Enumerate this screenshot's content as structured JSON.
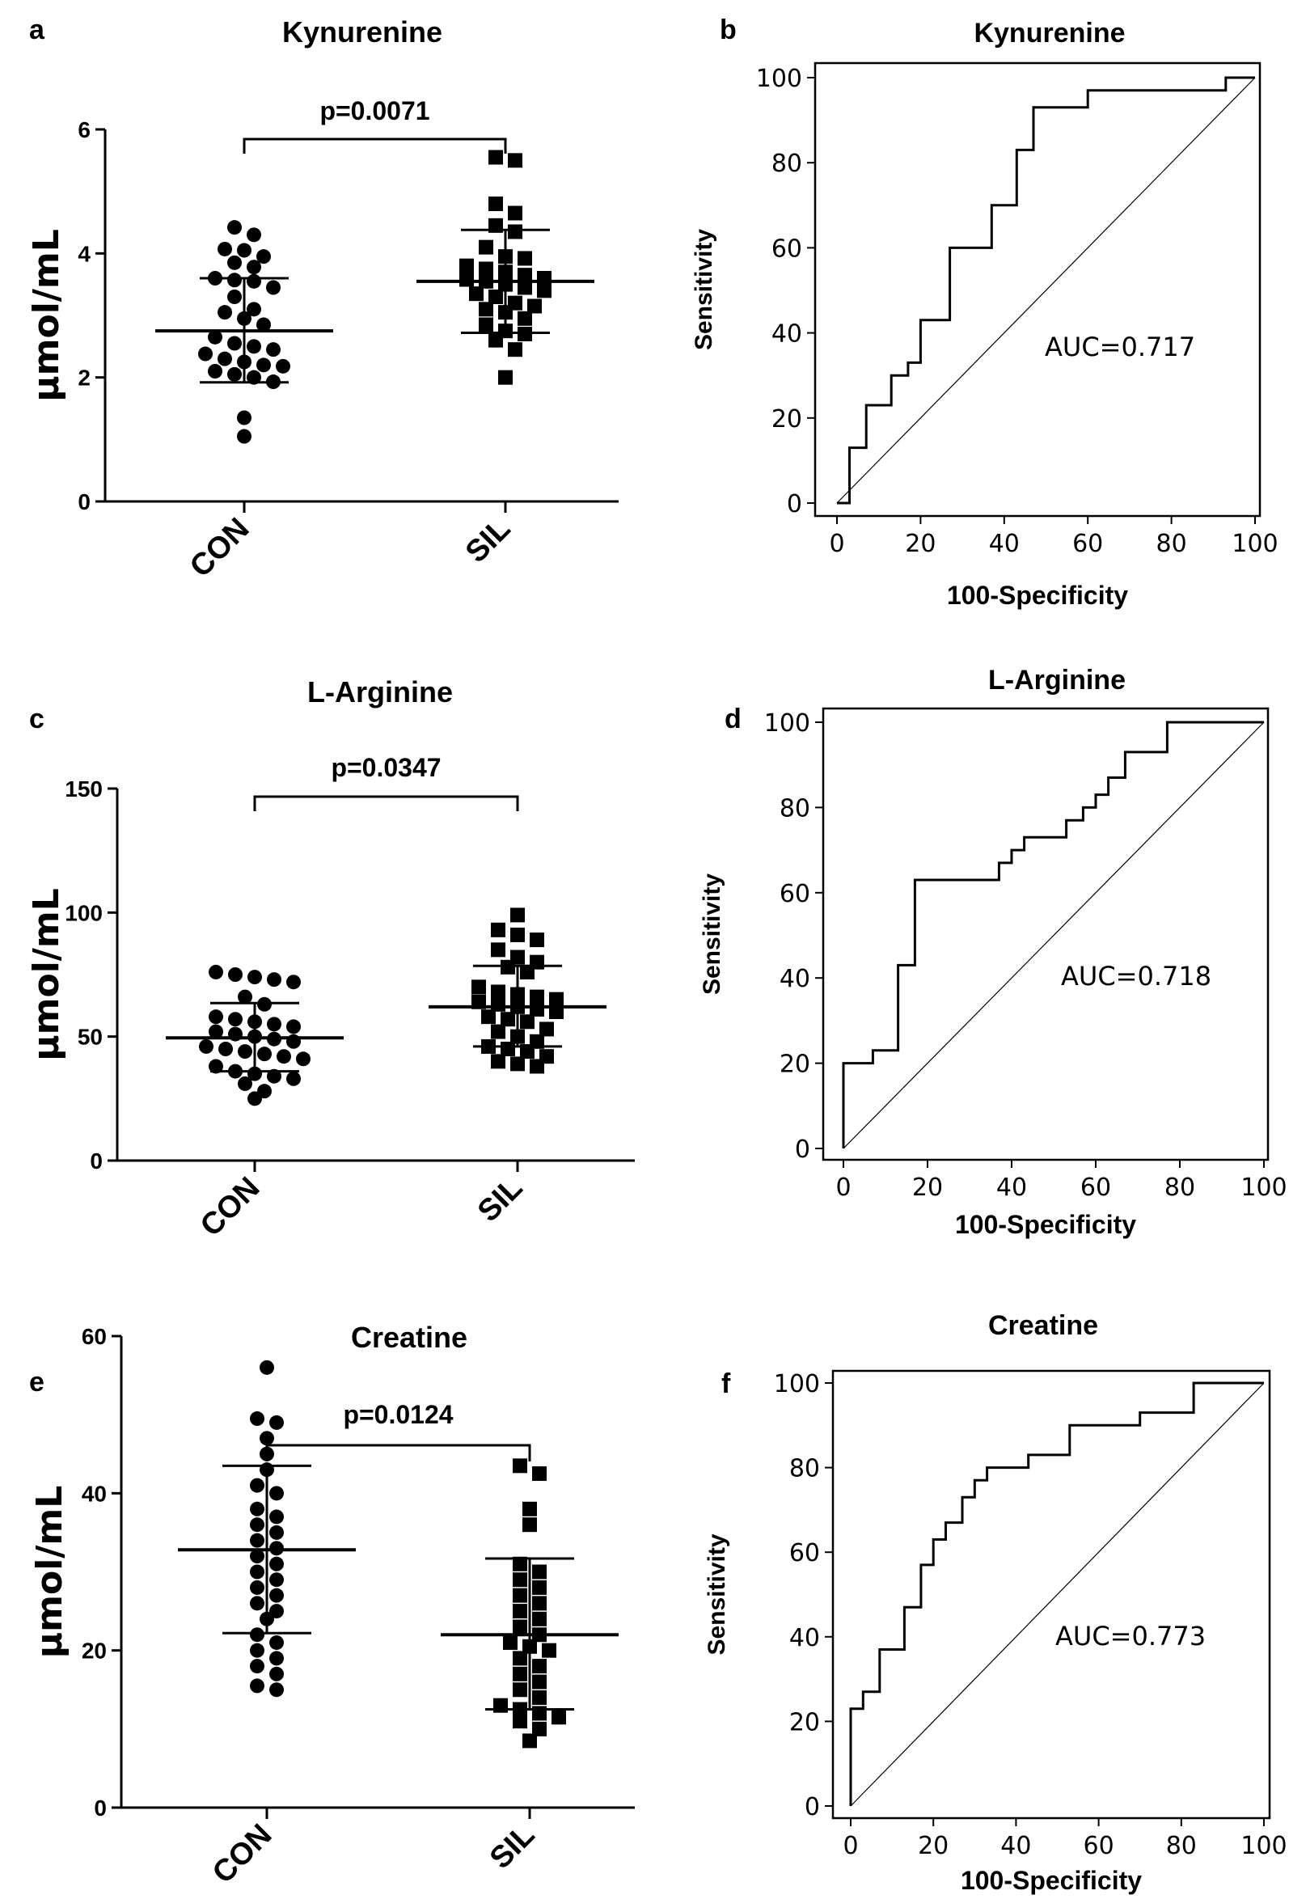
{
  "chart_data": [
    {
      "panel": "a",
      "type": "scatter",
      "title": "Kynurenine",
      "ylabel": "μmol/mL",
      "categories": [
        "CON",
        "SIL"
      ],
      "ylim": [
        0,
        6
      ],
      "yticks": [
        0,
        2,
        4,
        6
      ],
      "pvalue": "p=0.0071",
      "groups": [
        {
          "name": "CON",
          "marker": "circle",
          "mean": 2.75,
          "sd_low": 1.92,
          "sd_high": 3.6,
          "values": [
            4.42,
            4.3,
            4.07,
            4.05,
            3.95,
            3.85,
            3.78,
            3.6,
            3.57,
            3.55,
            3.45,
            3.3,
            3.1,
            3.05,
            2.95,
            2.85,
            2.65,
            2.55,
            2.5,
            2.45,
            2.38,
            2.3,
            2.25,
            2.2,
            2.18,
            2.1,
            2.05,
            2.0,
            1.93,
            1.35,
            1.05
          ]
        },
        {
          "name": "SIL",
          "marker": "square",
          "mean": 3.55,
          "sd_low": 2.72,
          "sd_high": 4.38,
          "values": [
            5.55,
            5.5,
            4.8,
            4.65,
            4.45,
            4.35,
            4.1,
            3.95,
            3.92,
            3.8,
            3.75,
            3.7,
            3.65,
            3.6,
            3.58,
            3.55,
            3.5,
            3.45,
            3.4,
            3.35,
            3.3,
            3.2,
            3.15,
            3.1,
            3.05,
            2.95,
            2.85,
            2.75,
            2.7,
            2.6,
            2.45,
            2.0
          ]
        }
      ]
    },
    {
      "panel": "b",
      "type": "line",
      "title": "Kynurenine",
      "xlabel": "100-Specificity",
      "ylabel": "Sensitivity",
      "xlim": [
        0,
        100
      ],
      "ylim": [
        0,
        100
      ],
      "ticks": [
        0,
        20,
        40,
        60,
        80,
        100
      ],
      "annotation": "AUC=0.717",
      "x": [
        0,
        3,
        3,
        7,
        7,
        13,
        13,
        17,
        17,
        20,
        20,
        27,
        27,
        37,
        37,
        43,
        43,
        47,
        47,
        60,
        60,
        93,
        93,
        100
      ],
      "y": [
        0,
        0,
        13,
        13,
        23,
        23,
        30,
        30,
        33,
        33,
        43,
        43,
        60,
        60,
        70,
        70,
        83,
        83,
        93,
        93,
        97,
        97,
        100,
        100
      ]
    },
    {
      "panel": "c",
      "type": "scatter",
      "title": "L-Arginine",
      "ylabel": "μmol/mL",
      "categories": [
        "CON",
        "SIL"
      ],
      "ylim": [
        0,
        150
      ],
      "yticks": [
        0,
        50,
        100,
        150
      ],
      "pvalue": "p=0.0347",
      "groups": [
        {
          "name": "CON",
          "marker": "circle",
          "mean": 49.5,
          "sd_low": 36,
          "sd_high": 63.5,
          "values": [
            76,
            75,
            74,
            73,
            72,
            66,
            63,
            58,
            57,
            56,
            55,
            54,
            52,
            51,
            50,
            49,
            48,
            46,
            45,
            44,
            43,
            42,
            41,
            38,
            36,
            35,
            34,
            33,
            31,
            28,
            25
          ]
        },
        {
          "name": "SIL",
          "marker": "square",
          "mean": 62,
          "sd_low": 46,
          "sd_high": 78.5,
          "values": [
            99,
            93,
            91,
            89,
            85,
            82,
            80,
            78,
            76,
            70,
            68,
            67,
            66,
            65,
            64,
            63,
            62,
            61,
            60,
            58,
            57,
            56,
            53,
            52,
            50,
            48,
            46,
            45,
            44,
            42,
            40,
            39,
            38
          ]
        }
      ]
    },
    {
      "panel": "d",
      "type": "line",
      "title": "L-Arginine",
      "xlabel": "100-Specificity",
      "ylabel": "Sensitivity",
      "xlim": [
        0,
        100
      ],
      "ylim": [
        0,
        100
      ],
      "ticks": [
        0,
        20,
        40,
        60,
        80,
        100
      ],
      "annotation": "AUC=0.718",
      "x": [
        0,
        0,
        7,
        7,
        13,
        13,
        17,
        17,
        37,
        37,
        40,
        40,
        43,
        43,
        53,
        53,
        57,
        57,
        60,
        60,
        63,
        63,
        67,
        67,
        70,
        70,
        77,
        77,
        100
      ],
      "y": [
        0,
        20,
        20,
        23,
        23,
        43,
        43,
        63,
        63,
        67,
        67,
        70,
        70,
        73,
        73,
        77,
        77,
        80,
        80,
        83,
        83,
        87,
        87,
        93,
        93,
        93,
        93,
        100,
        100
      ]
    },
    {
      "panel": "e",
      "type": "scatter",
      "title": "Creatine",
      "ylabel": "μmol/mL",
      "categories": [
        "CON",
        "SIL"
      ],
      "ylim": [
        0,
        60
      ],
      "yticks": [
        0,
        20,
        40,
        60
      ],
      "pvalue": "p=0.0124",
      "groups": [
        {
          "name": "CON",
          "marker": "circle",
          "mean": 32.8,
          "sd_low": 22.2,
          "sd_high": 43.5,
          "values": [
            56,
            49.5,
            49,
            47,
            45,
            43,
            41,
            40,
            38,
            37,
            36,
            35,
            34,
            33,
            32,
            31,
            30,
            29,
            28,
            27,
            26,
            25,
            24,
            22,
            21,
            20,
            19,
            18,
            17,
            15.5,
            15
          ]
        },
        {
          "name": "SIL",
          "marker": "square",
          "mean": 22,
          "sd_low": 12.5,
          "sd_high": 31.7,
          "values": [
            43.5,
            42.5,
            38,
            36,
            31,
            30,
            29,
            28,
            27,
            26,
            25,
            24,
            23,
            22,
            21,
            20.5,
            20,
            19,
            18,
            17,
            16,
            15,
            14,
            13,
            12.5,
            12,
            11.5,
            11,
            10,
            8.5
          ]
        }
      ]
    },
    {
      "panel": "f",
      "type": "line",
      "title": "Creatine",
      "xlabel": "100-Specificity",
      "ylabel": "Sensitivity",
      "xlim": [
        0,
        100
      ],
      "ylim": [
        0,
        100
      ],
      "ticks": [
        0,
        20,
        40,
        60,
        80,
        100
      ],
      "annotation": "AUC=0.773",
      "x": [
        0,
        0,
        3,
        3,
        7,
        7,
        13,
        13,
        17,
        17,
        20,
        20,
        23,
        23,
        27,
        27,
        30,
        30,
        33,
        33,
        43,
        43,
        53,
        53,
        70,
        70,
        83,
        83,
        100
      ],
      "y": [
        0,
        23,
        23,
        27,
        27,
        37,
        37,
        47,
        47,
        57,
        57,
        63,
        63,
        67,
        67,
        73,
        73,
        77,
        77,
        80,
        80,
        83,
        83,
        90,
        90,
        93,
        93,
        100,
        100
      ]
    }
  ]
}
